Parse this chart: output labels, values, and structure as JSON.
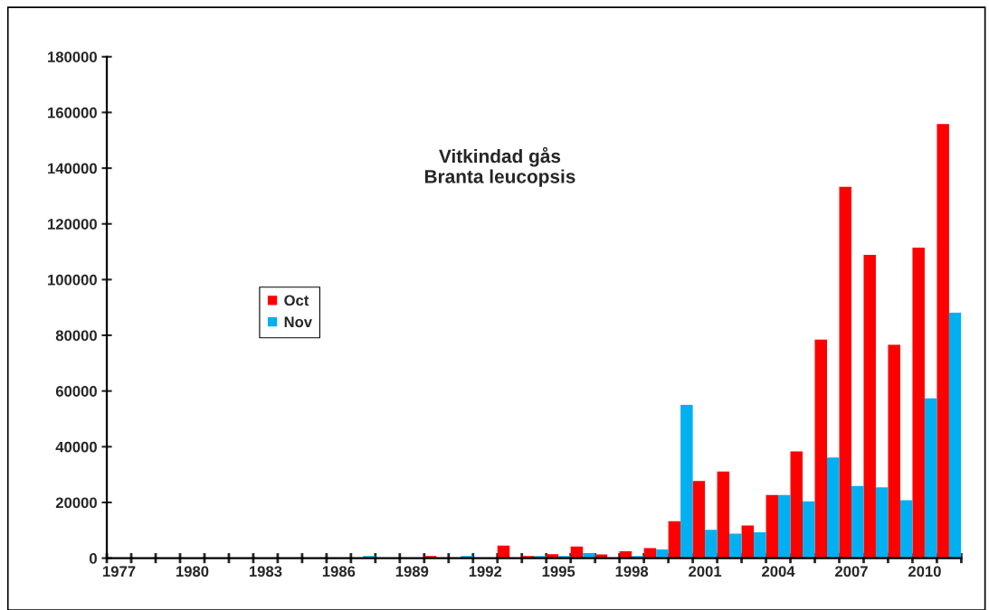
{
  "chart_data": {
    "type": "bar",
    "title": "Vitkindad gås\nBranta leucopsis",
    "categories": [
      "1977",
      null,
      null,
      "1980",
      null,
      null,
      "1983",
      null,
      null,
      "1986",
      null,
      null,
      "1989",
      null,
      null,
      "1992",
      null,
      null,
      "1995",
      null,
      null,
      "1998",
      null,
      null,
      "2001",
      null,
      null,
      "2004",
      null,
      null,
      "2007",
      null,
      null,
      "2010",
      null
    ],
    "series": [
      {
        "name": "Oct",
        "color": "#ff0000",
        "values": [
          0,
          0,
          0,
          0,
          0,
          0,
          0,
          0,
          0,
          0,
          0,
          0,
          0,
          800,
          0,
          0,
          4500,
          800,
          1400,
          4200,
          1300,
          2500,
          3600,
          13300,
          27700,
          31100,
          11700,
          22700,
          38300,
          78500,
          133300,
          108900,
          76600,
          111500,
          155800
        ]
      },
      {
        "name": "Nov",
        "color": "#00b0f0",
        "values": [
          0,
          0,
          0,
          0,
          0,
          0,
          0,
          0,
          0,
          0,
          800,
          0,
          0,
          0,
          800,
          0,
          0,
          800,
          800,
          1800,
          0,
          800,
          3100,
          55000,
          10200,
          8800,
          9300,
          22700,
          20400,
          36100,
          25900,
          25400,
          20800,
          57400,
          88100
        ]
      }
    ],
    "ylim": [
      0,
      180000
    ],
    "yticks": [
      0,
      20000,
      40000,
      60000,
      80000,
      100000,
      120000,
      140000,
      160000,
      180000
    ],
    "grid": false,
    "legend": "left"
  }
}
